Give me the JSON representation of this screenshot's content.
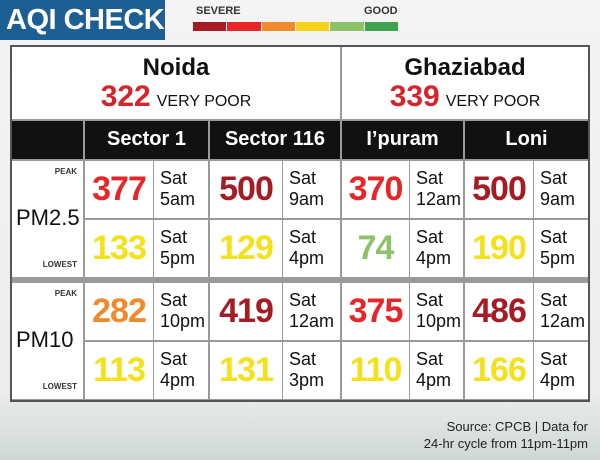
{
  "header": {
    "title": "AQI CHECK",
    "scale": {
      "left": "SEVERE",
      "right": "GOOD",
      "colors": [
        "#a51c24",
        "#e8262a",
        "#f08a2b",
        "#f6d21b",
        "#8dc26b",
        "#3fa34d"
      ]
    }
  },
  "cities": [
    {
      "name": "Noida",
      "aqi": 322,
      "category": "VERY POOR"
    },
    {
      "name": "Ghaziabad",
      "aqi": 339,
      "category": "VERY POOR"
    }
  ],
  "stations": [
    "Sector 1",
    "Sector 116",
    "I’puram",
    "Loni"
  ],
  "pollutants": [
    {
      "name": "PM2.5",
      "rows": [
        {
          "label": "PEAK",
          "cells": [
            {
              "value": 377,
              "day": "Sat",
              "time": "5am",
              "color": "#e8262a"
            },
            {
              "value": 500,
              "day": "Sat",
              "time": "9am",
              "color": "#a51c24"
            },
            {
              "value": 370,
              "day": "Sat",
              "time": "12am",
              "color": "#e8262a"
            },
            {
              "value": 500,
              "day": "Sat",
              "time": "9am",
              "color": "#a51c24"
            }
          ]
        },
        {
          "label": "LOWEST",
          "cells": [
            {
              "value": 133,
              "day": "Sat",
              "time": "5pm",
              "color": "#f3e21a"
            },
            {
              "value": 129,
              "day": "Sat",
              "time": "4pm",
              "color": "#f3e21a"
            },
            {
              "value": 74,
              "day": "Sat",
              "time": "4pm",
              "color": "#8dc26b"
            },
            {
              "value": 190,
              "day": "Sat",
              "time": "5pm",
              "color": "#f3e21a"
            }
          ]
        }
      ]
    },
    {
      "name": "PM10",
      "rows": [
        {
          "label": "PEAK",
          "cells": [
            {
              "value": 282,
              "day": "Sat",
              "time": "10pm",
              "color": "#f08a2b"
            },
            {
              "value": 419,
              "day": "Sat",
              "time": "12am",
              "color": "#a51c24"
            },
            {
              "value": 375,
              "day": "Sat",
              "time": "10pm",
              "color": "#e8262a"
            },
            {
              "value": 486,
              "day": "Sat",
              "time": "12am",
              "color": "#a51c24"
            }
          ]
        },
        {
          "label": "LOWEST",
          "cells": [
            {
              "value": 113,
              "day": "Sat",
              "time": "4pm",
              "color": "#f3e21a"
            },
            {
              "value": 131,
              "day": "Sat",
              "time": "3pm",
              "color": "#f3e21a"
            },
            {
              "value": 110,
              "day": "Sat",
              "time": "4pm",
              "color": "#f3e21a"
            },
            {
              "value": 166,
              "day": "Sat",
              "time": "4pm",
              "color": "#f3e21a"
            }
          ]
        }
      ]
    }
  ],
  "source": [
    "Source: CPCB | Data for",
    "24-hr cycle from 11pm-11pm"
  ]
}
